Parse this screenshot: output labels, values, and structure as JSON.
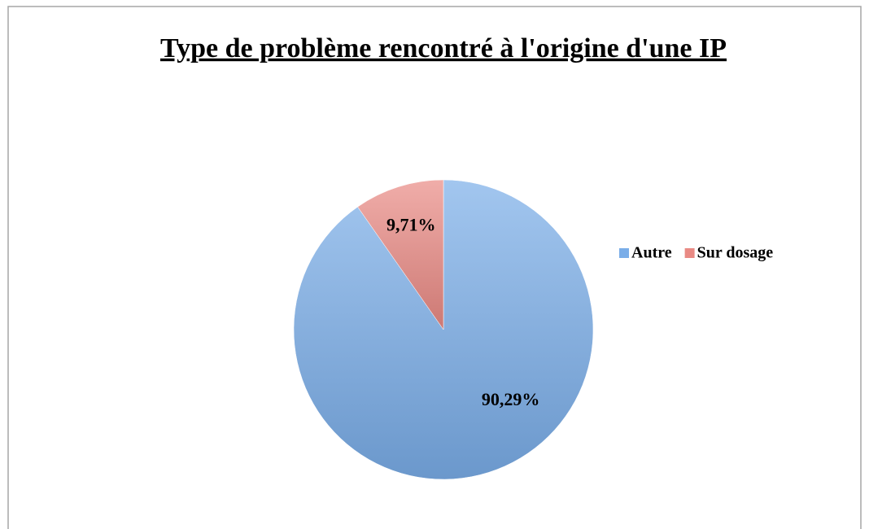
{
  "chart_data": {
    "type": "pie",
    "title": "Type de problème rencontré à l'origine d'une IP",
    "categories": [
      "Autre",
      "Sur dosage"
    ],
    "values": [
      90.29,
      9.71
    ],
    "value_labels": [
      "90,29%",
      "9,71%"
    ],
    "colors": [
      "#7aade8",
      "#e98a84"
    ],
    "legend": "right"
  }
}
